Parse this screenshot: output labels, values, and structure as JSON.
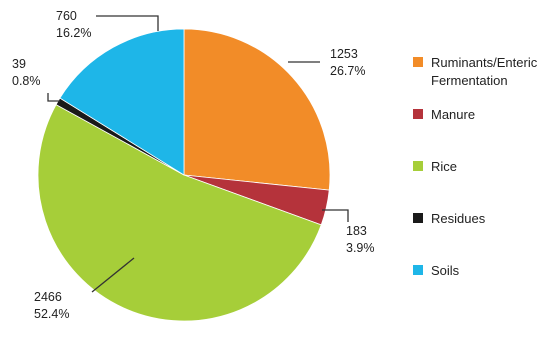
{
  "chart_data": {
    "type": "pie",
    "slices": [
      {
        "name": "Ruminants/Enteric Fermentation",
        "legend_lines": [
          "Ruminants/Enteric",
          "Fermentation"
        ],
        "value": 1253,
        "value_label": "1253",
        "percent_label": "26.7%",
        "color": "#F28C28"
      },
      {
        "name": "Manure",
        "legend_lines": [
          "Manure"
        ],
        "value": 183,
        "value_label": "183",
        "percent_label": "3.9%",
        "color": "#B5333B"
      },
      {
        "name": "Rice",
        "legend_lines": [
          "Rice"
        ],
        "value": 2466,
        "value_label": "2466",
        "percent_label": "52.4%",
        "color": "#A6CE39"
      },
      {
        "name": "Residues",
        "legend_lines": [
          "Residues"
        ],
        "value": 39,
        "value_label": "39",
        "percent_label": "0.8%",
        "color": "#1A1A1A"
      },
      {
        "name": "Soils",
        "legend_lines": [
          "Soils"
        ],
        "value": 760,
        "value_label": "760",
        "percent_label": "16.2%",
        "color": "#1EB6E8"
      }
    ],
    "start": "12 o'clock",
    "direction": "clockwise",
    "legend_position": "right"
  }
}
